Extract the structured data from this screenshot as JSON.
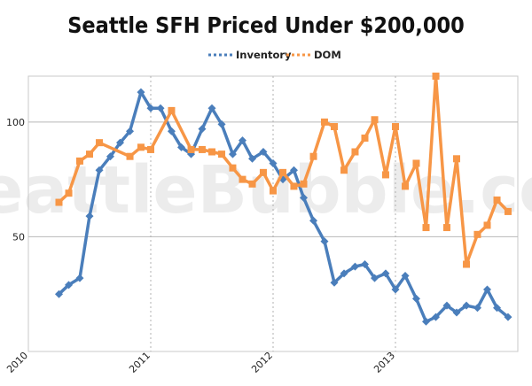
{
  "chart_data": {
    "type": "line",
    "title": "Seattle SFH Priced Under $200,000",
    "watermark": "SeattleBubble.com",
    "xlabel": "",
    "ylabel": "",
    "xlim": [
      2010,
      2014
    ],
    "ylim": [
      0,
      120
    ],
    "x_ticks": [
      {
        "value": 2010,
        "label": "2010"
      },
      {
        "value": 2011,
        "label": "2011"
      },
      {
        "value": 2012,
        "label": "2012"
      },
      {
        "value": 2013,
        "label": "2013"
      }
    ],
    "y_ticks": [
      {
        "value": 50,
        "label": "50"
      },
      {
        "value": 100,
        "label": "100"
      }
    ],
    "grid": true,
    "legend_position": "top-center",
    "series": [
      {
        "name": "Inventory",
        "color": "#4a7ebb",
        "marker": "diamond",
        "points": [
          [
            2010.25,
            25
          ],
          [
            2010.33,
            29
          ],
          [
            2010.42,
            32
          ],
          [
            2010.5,
            59
          ],
          [
            2010.58,
            79
          ],
          [
            2010.67,
            85
          ],
          [
            2010.75,
            91
          ],
          [
            2010.83,
            96
          ],
          [
            2010.92,
            113
          ],
          [
            2011.0,
            106
          ],
          [
            2011.08,
            106
          ],
          [
            2011.17,
            96
          ],
          [
            2011.25,
            89
          ],
          [
            2011.33,
            86
          ],
          [
            2011.42,
            97
          ],
          [
            2011.5,
            106
          ],
          [
            2011.58,
            99
          ],
          [
            2011.67,
            86
          ],
          [
            2011.75,
            92
          ],
          [
            2011.83,
            84
          ],
          [
            2011.92,
            87
          ],
          [
            2012.0,
            82
          ],
          [
            2012.08,
            75
          ],
          [
            2012.17,
            79
          ],
          [
            2012.25,
            67
          ],
          [
            2012.33,
            57
          ],
          [
            2012.42,
            48
          ],
          [
            2012.5,
            30
          ],
          [
            2012.58,
            34
          ],
          [
            2012.67,
            37
          ],
          [
            2012.75,
            38
          ],
          [
            2012.83,
            32
          ],
          [
            2012.92,
            34
          ],
          [
            2013.0,
            27
          ],
          [
            2013.08,
            33
          ],
          [
            2013.17,
            23
          ],
          [
            2013.25,
            13
          ],
          [
            2013.33,
            15
          ],
          [
            2013.42,
            20
          ],
          [
            2013.5,
            17
          ],
          [
            2013.58,
            20
          ],
          [
            2013.67,
            19
          ],
          [
            2013.75,
            27
          ],
          [
            2013.83,
            19
          ],
          [
            2013.92,
            15
          ]
        ]
      },
      {
        "name": "DOM",
        "color": "#f79646",
        "marker": "square",
        "points": [
          [
            2010.25,
            65
          ],
          [
            2010.33,
            69
          ],
          [
            2010.42,
            83
          ],
          [
            2010.5,
            86
          ],
          [
            2010.58,
            91
          ],
          [
            2010.83,
            85
          ],
          [
            2010.92,
            89
          ],
          [
            2011.0,
            88
          ],
          [
            2011.17,
            105
          ],
          [
            2011.33,
            88
          ],
          [
            2011.42,
            88
          ],
          [
            2011.5,
            87
          ],
          [
            2011.58,
            86
          ],
          [
            2011.67,
            80
          ],
          [
            2011.75,
            75
          ],
          [
            2011.83,
            73
          ],
          [
            2011.92,
            78
          ],
          [
            2012.0,
            70
          ],
          [
            2012.08,
            78
          ],
          [
            2012.17,
            72
          ],
          [
            2012.25,
            73
          ],
          [
            2012.33,
            85
          ],
          [
            2012.42,
            100
          ],
          [
            2012.5,
            98
          ],
          [
            2012.58,
            79
          ],
          [
            2012.67,
            87
          ],
          [
            2012.75,
            93
          ],
          [
            2012.83,
            101
          ],
          [
            2012.92,
            77
          ],
          [
            2013.0,
            98
          ],
          [
            2013.08,
            72
          ],
          [
            2013.17,
            82
          ],
          [
            2013.25,
            54
          ],
          [
            2013.33,
            120
          ],
          [
            2013.42,
            54
          ],
          [
            2013.5,
            84
          ],
          [
            2013.58,
            38
          ],
          [
            2013.67,
            51
          ],
          [
            2013.75,
            55
          ],
          [
            2013.83,
            66
          ],
          [
            2013.92,
            61
          ]
        ]
      }
    ]
  }
}
